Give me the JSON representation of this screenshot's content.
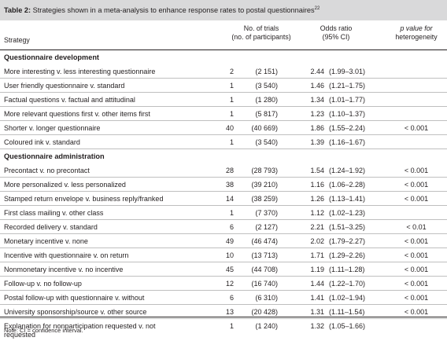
{
  "title": {
    "label": "Table 2:",
    "text": "Strategies shown in a meta-analysis to enhance response rates to postal questionnaires",
    "ref": "22"
  },
  "headers": {
    "strategy": "Strategy",
    "trials": [
      "No. of trials",
      "(no. of participants)"
    ],
    "odds": [
      "Odds ratio",
      "(95% CI)"
    ],
    "p": [
      "p value for",
      "heterogeneity"
    ]
  },
  "sections": [
    {
      "name": "Questionnaire development",
      "rows": [
        {
          "strategy": "More interesting v. less interesting questionnaire",
          "n": "2",
          "participants": "(2 151)",
          "or": "2.44",
          "ci": "(1.99–3.01)",
          "p": ""
        },
        {
          "strategy": "User friendly questionnaire v. standard",
          "n": "1",
          "participants": "(3 540)",
          "or": "1.46",
          "ci": "(1.21–1.75)",
          "p": ""
        },
        {
          "strategy": "Factual questions v. factual and attitudinal",
          "n": "1",
          "participants": "(1 280)",
          "or": "1.34",
          "ci": "(1.01–1.77)",
          "p": ""
        },
        {
          "strategy": "More relevant questions first v. other items first",
          "n": "1",
          "participants": "(5 817)",
          "or": "1.23",
          "ci": "(1.10–1.37)",
          "p": ""
        },
        {
          "strategy": "Shorter v. longer questionnaire",
          "n": "40",
          "participants": "(40 669)",
          "or": "1.86",
          "ci": "(1.55–2.24)",
          "p": "< 0.001"
        },
        {
          "strategy": "Coloured ink v. standard",
          "n": "1",
          "participants": "(3 540)",
          "or": "1.39",
          "ci": "(1.16–1.67)",
          "p": ""
        }
      ]
    },
    {
      "name": "Questionnaire administration",
      "rows": [
        {
          "strategy": "Precontact v. no precontact",
          "n": "28",
          "participants": "(28 793)",
          "or": "1.54",
          "ci": "(1.24–1.92)",
          "p": "< 0.001"
        },
        {
          "strategy": "More personalized v. less personalized",
          "n": "38",
          "participants": "(39 210)",
          "or": "1.16",
          "ci": "(1.06–2.28)",
          "p": "< 0.001"
        },
        {
          "strategy": "Stamped return envelope v. business reply/franked",
          "n": "14",
          "participants": "(38 259)",
          "or": "1.26",
          "ci": "(1.13–1.41)",
          "p": "< 0.001"
        },
        {
          "strategy": "First class mailing v. other class",
          "n": "1",
          "participants": "(7 370)",
          "or": "1.12",
          "ci": "(1.02–1.23)",
          "p": ""
        },
        {
          "strategy": "Recorded delivery v. standard",
          "n": "6",
          "participants": "(2 127)",
          "or": "2.21",
          "ci": "(1.51–3.25)",
          "p": "< 0.01"
        },
        {
          "strategy": "Monetary incentive v. none",
          "n": "49",
          "participants": "(46 474)",
          "or": "2.02",
          "ci": "(1.79–2.27)",
          "p": "< 0.001"
        },
        {
          "strategy": "Incentive with questionnaire v. on return",
          "n": "10",
          "participants": "(13 713)",
          "or": "1.71",
          "ci": "(1.29–2.26)",
          "p": "< 0.001"
        },
        {
          "strategy": "Nonmonetary incentive v. no incentive",
          "n": "45",
          "participants": "(44 708)",
          "or": "1.19",
          "ci": "(1.11–1.28)",
          "p": "< 0.001"
        },
        {
          "strategy": "Follow-up v. no follow-up",
          "n": "12",
          "participants": "(16 740)",
          "or": "1.44",
          "ci": "(1.22–1.70)",
          "p": "< 0.001"
        },
        {
          "strategy": "Postal follow-up with questionnaire v. without",
          "n": "6",
          "participants": "(6 310)",
          "or": "1.41",
          "ci": "(1.02–1.94)",
          "p": "< 0.001"
        },
        {
          "strategy": "University sponsorship/source v. other source",
          "n": "13",
          "participants": "(20 428)",
          "or": "1.31",
          "ci": "(1.11–1.54)",
          "p": "< 0.001"
        },
        {
          "strategy": "Explanation for nonparticipation requested v. not requested",
          "n": "1",
          "participants": "(1 240)",
          "or": "1.32",
          "ci": "(1.05–1.66)",
          "p": ""
        }
      ]
    }
  ],
  "note": "Note: CI = confidence interval."
}
